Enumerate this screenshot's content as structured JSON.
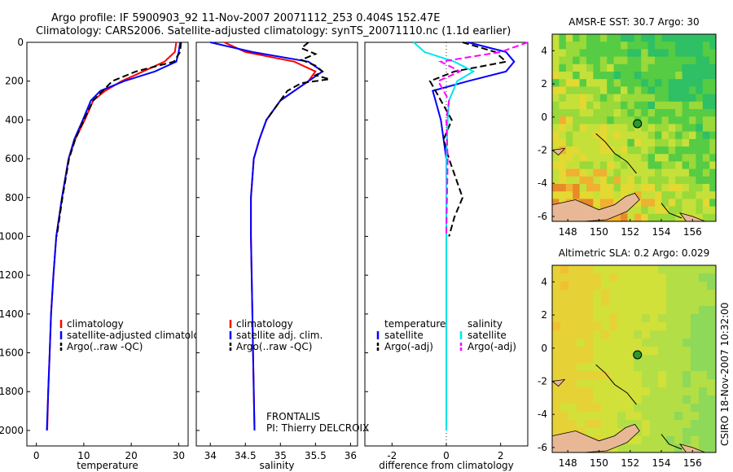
{
  "header": {
    "line1": "Argo profile: IF 5900903_92 11-Nov-2007 20071112_253 0.404S 152.47E",
    "line2": "Climatology: CARS2006. Satellite-adjusted climatology: synTS_20071110.nc (1.1d earlier)"
  },
  "colors": {
    "climatology": "#ff0000",
    "satellite": "#0000ff",
    "argo": "#000000",
    "salinity_satellite": "#00e5ee",
    "salinity_argo": "#ff00ff",
    "land": "#e8b896",
    "float_marker": "#2a9a2a"
  },
  "pi": {
    "line1": "FRONTALIS",
    "line2": "PI: Thierry DELCROIX"
  },
  "watermark": "CSIRO 18-Nov-2007 10:32:00",
  "chart_data": [
    {
      "type": "line",
      "xlabel": "temperature",
      "xlim": [
        -2,
        32
      ],
      "ylim": [
        2080,
        0
      ],
      "xticks": [
        0,
        10,
        20,
        30
      ],
      "yticks": [
        0,
        200,
        400,
        600,
        800,
        1000,
        1200,
        1400,
        1600,
        1800,
        2000
      ],
      "legend": [
        "climatology",
        "satellite-adjusted climatology",
        "Argo(..raw -QC)"
      ],
      "series": [
        {
          "name": "climatology",
          "depth": [
            0,
            50,
            100,
            150,
            200,
            250,
            300,
            400,
            500,
            600,
            800,
            1000,
            1200,
            1400,
            1600,
            1800,
            2000
          ],
          "values": [
            29.5,
            29.2,
            27.0,
            22.5,
            18.0,
            14.5,
            12.0,
            10.2,
            8.2,
            6.8,
            5.4,
            4.2,
            3.6,
            3.1,
            2.8,
            2.5,
            2.3
          ]
        },
        {
          "name": "satellite-adjusted climatology",
          "depth": [
            0,
            50,
            100,
            150,
            200,
            250,
            300,
            400,
            500,
            600,
            800,
            1000,
            1200,
            1400,
            1600,
            1800,
            2000
          ],
          "values": [
            30.3,
            30.0,
            29.5,
            25.0,
            18.5,
            13.5,
            11.5,
            9.8,
            8.0,
            6.8,
            5.4,
            4.2,
            3.6,
            3.1,
            2.8,
            2.5,
            2.2
          ]
        },
        {
          "name": "Argo(..raw -QC)",
          "depth": [
            0,
            50,
            100,
            150,
            200,
            250,
            300,
            400,
            500,
            600,
            800,
            1000
          ],
          "values": [
            30.5,
            30.3,
            29.0,
            21.0,
            16.0,
            14.0,
            12.0,
            10.0,
            8.2,
            6.9,
            5.5,
            4.3
          ]
        }
      ]
    },
    {
      "type": "line",
      "xlabel": "salinity",
      "xlim": [
        33.8,
        36.1
      ],
      "ylim": [
        2080,
        0
      ],
      "xticks": [
        34,
        34.5,
        35,
        35.5,
        36
      ],
      "legend": [
        "climatology",
        "satellite adj. clim.",
        "Argo(..raw -QC)"
      ],
      "series": [
        {
          "name": "climatology",
          "depth": [
            0,
            50,
            100,
            150,
            200,
            250,
            300,
            400,
            500,
            600,
            800,
            1000,
            1200,
            1400,
            1600,
            1800,
            2000
          ],
          "values": [
            34.2,
            34.5,
            35.2,
            35.5,
            35.4,
            35.2,
            35.0,
            34.8,
            34.7,
            34.62,
            34.58,
            34.58,
            34.59,
            34.6,
            34.61,
            34.62,
            34.63
          ]
        },
        {
          "name": "satellite adj. clim.",
          "depth": [
            0,
            50,
            100,
            150,
            200,
            250,
            300,
            400,
            500,
            600,
            800,
            1000,
            1200,
            1400,
            1600,
            1800,
            2000
          ],
          "values": [
            34.0,
            34.6,
            35.4,
            35.6,
            35.4,
            35.2,
            35.0,
            34.8,
            34.7,
            34.62,
            34.58,
            34.58,
            34.59,
            34.6,
            34.61,
            34.62,
            34.63
          ]
        },
        {
          "name": "Argo(..raw -QC)",
          "depth": [
            0,
            30,
            60,
            90,
            120,
            150,
            170,
            190,
            210,
            250,
            300,
            400
          ],
          "values": [
            35.4,
            35.3,
            35.5,
            35.3,
            35.5,
            35.6,
            35.5,
            35.7,
            35.3,
            35.1,
            35.0,
            34.8
          ]
        }
      ]
    },
    {
      "type": "line",
      "xlabel": "difference from climatology",
      "xlim": [
        -3,
        3
      ],
      "ylim": [
        2080,
        0
      ],
      "xticks": [
        -2,
        0,
        2
      ],
      "legend": [
        "temperature",
        "satellite",
        "Argo(-adj)",
        "salinity",
        "satellite",
        "Argo(-adj)"
      ],
      "series": [
        {
          "name": "temperature satellite",
          "depth": [
            0,
            50,
            100,
            150,
            200,
            250,
            300,
            400,
            600,
            800,
            1000,
            1400,
            2000
          ],
          "values": [
            0.8,
            2.2,
            2.5,
            2.2,
            0.8,
            -0.5,
            -0.4,
            -0.2,
            0,
            0,
            0,
            0,
            0
          ]
        },
        {
          "name": "temperature Argo(-adj)",
          "depth": [
            0,
            50,
            100,
            150,
            200,
            300,
            400,
            500,
            600,
            800,
            900,
            1000
          ],
          "values": [
            0.6,
            1.8,
            2.2,
            0.3,
            -0.6,
            -0.2,
            0.2,
            -0.1,
            0.1,
            0.6,
            0.3,
            0.1
          ]
        },
        {
          "name": "salinity satellite",
          "depth": [
            0,
            50,
            100,
            150,
            200,
            300,
            400,
            600,
            1000,
            2000
          ],
          "values": [
            -1.2,
            -0.8,
            0.3,
            1.0,
            0.4,
            0.1,
            0.05,
            0,
            0,
            0
          ]
        },
        {
          "name": "salinity Argo(-adj)",
          "depth": [
            0,
            50,
            100,
            150,
            200,
            300,
            400,
            600,
            1000
          ],
          "values": [
            3.0,
            2.0,
            -0.2,
            0.5,
            -0.3,
            0.1,
            0,
            0.05,
            0
          ]
        }
      ]
    },
    {
      "type": "heatmap",
      "title": "AMSR-E SST: 30.7 Argo: 30",
      "xlim": [
        147,
        157.5
      ],
      "ylim": [
        -6.3,
        5
      ],
      "xticks": [
        148,
        150,
        152,
        154,
        156
      ],
      "yticks": [
        -6,
        -4,
        -2,
        0,
        2,
        4
      ],
      "float_position": {
        "lon": 152.47,
        "lat": -0.404
      }
    },
    {
      "type": "heatmap",
      "title": "Altimetric SLA: 0.2 Argo: 0.029",
      "xlim": [
        147,
        157.5
      ],
      "ylim": [
        -6.3,
        5
      ],
      "xticks": [
        148,
        150,
        152,
        154,
        156
      ],
      "yticks": [
        -6,
        -4,
        -2,
        0,
        2,
        4
      ],
      "float_position": {
        "lon": 152.47,
        "lat": -0.404
      }
    }
  ]
}
